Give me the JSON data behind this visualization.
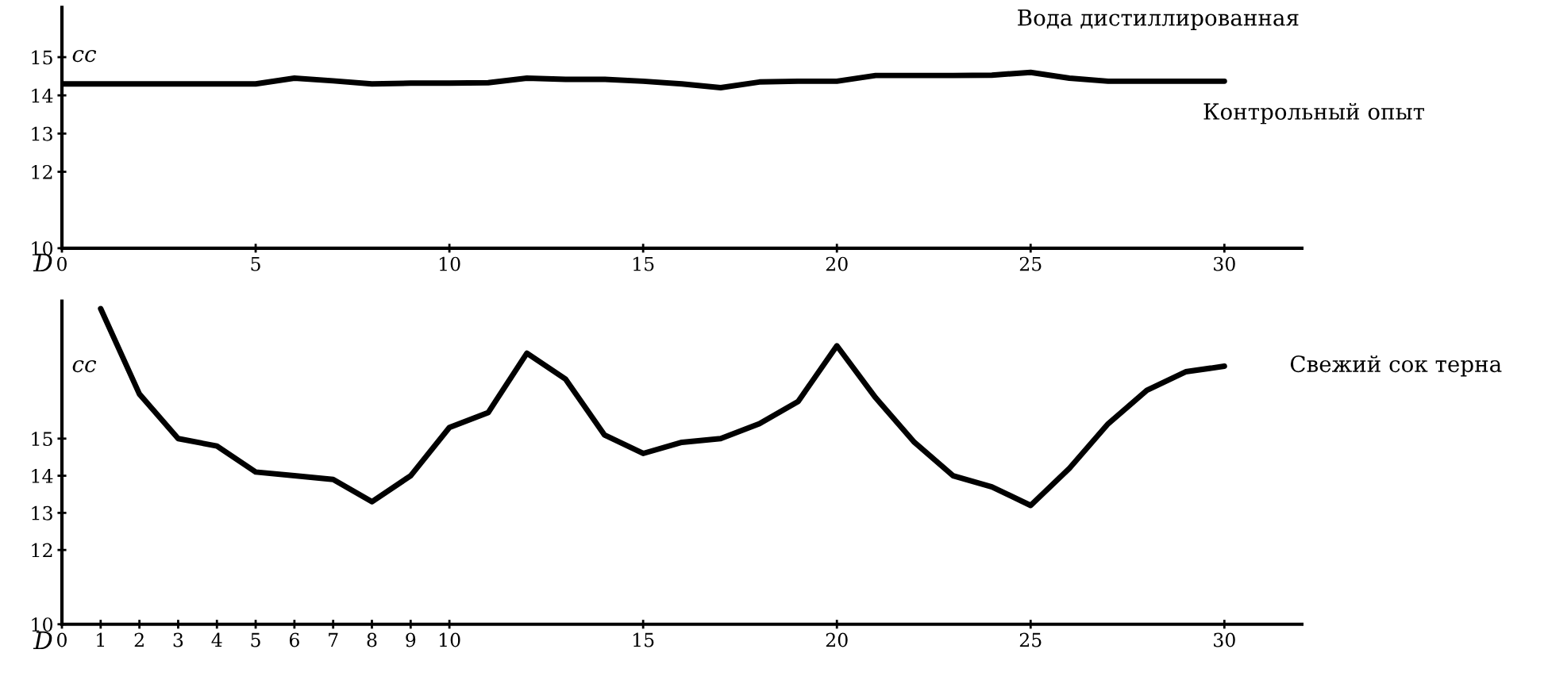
{
  "chart_data": [
    {
      "type": "line",
      "xlabel": "D",
      "ylabel": "cc",
      "x": [
        0,
        1,
        2,
        3,
        4,
        5,
        6,
        7,
        8,
        9,
        10,
        11,
        12,
        13,
        14,
        15,
        16,
        17,
        18,
        19,
        20,
        21,
        22,
        23,
        24,
        25,
        26,
        27,
        28,
        29,
        30
      ],
      "series": [
        {
          "name": "Вода дистиллированная",
          "color": "#000000",
          "values": [
            14.3,
            14.3,
            14.3,
            14.3,
            14.3,
            14.3,
            14.45,
            14.38,
            14.3,
            14.32,
            14.32,
            14.33,
            14.45,
            14.42,
            14.42,
            14.37,
            14.3,
            14.2,
            14.35,
            14.37,
            14.37,
            14.52,
            14.52,
            14.52,
            14.53,
            14.6,
            14.45,
            14.37,
            14.37,
            14.37,
            14.37
          ]
        }
      ],
      "annotations": [
        "Контрольный опыт"
      ],
      "xlim": [
        0,
        32
      ],
      "xticks": [
        0,
        5,
        10,
        15,
        20,
        25,
        30
      ],
      "ylim": [
        10,
        16.3
      ],
      "yticks": [
        10,
        12,
        13,
        14,
        15
      ],
      "grid": false,
      "legend": false,
      "marker": "none",
      "line_style": "solid"
    },
    {
      "type": "line",
      "xlabel": "D",
      "ylabel": "cc",
      "x": [
        1,
        2,
        3,
        4,
        5,
        6,
        7,
        8,
        9,
        10,
        11,
        12,
        13,
        14,
        15,
        16,
        17,
        18,
        19,
        20,
        21,
        22,
        23,
        24,
        25,
        26,
        27,
        28,
        29,
        30
      ],
      "series": [
        {
          "name": "Свежий сок терна",
          "color": "#000000",
          "values": [
            18.5,
            16.2,
            15.0,
            14.8,
            14.1,
            14.0,
            13.9,
            13.3,
            14.0,
            15.3,
            15.7,
            17.3,
            16.6,
            15.1,
            14.6,
            14.9,
            15.0,
            15.4,
            16.0,
            17.5,
            16.1,
            14.9,
            14.0,
            13.7,
            13.2,
            14.2,
            15.4,
            16.3,
            16.8,
            16.95
          ]
        }
      ],
      "xlim": [
        0,
        32
      ],
      "xticks": [
        0,
        1,
        2,
        3,
        4,
        5,
        6,
        7,
        8,
        9,
        10,
        15,
        20,
        25,
        30
      ],
      "ylim": [
        10,
        18.7
      ],
      "yticks": [
        10,
        12,
        13,
        14,
        15
      ],
      "grid": false,
      "legend": false,
      "marker": "none",
      "line_style": "solid"
    }
  ]
}
